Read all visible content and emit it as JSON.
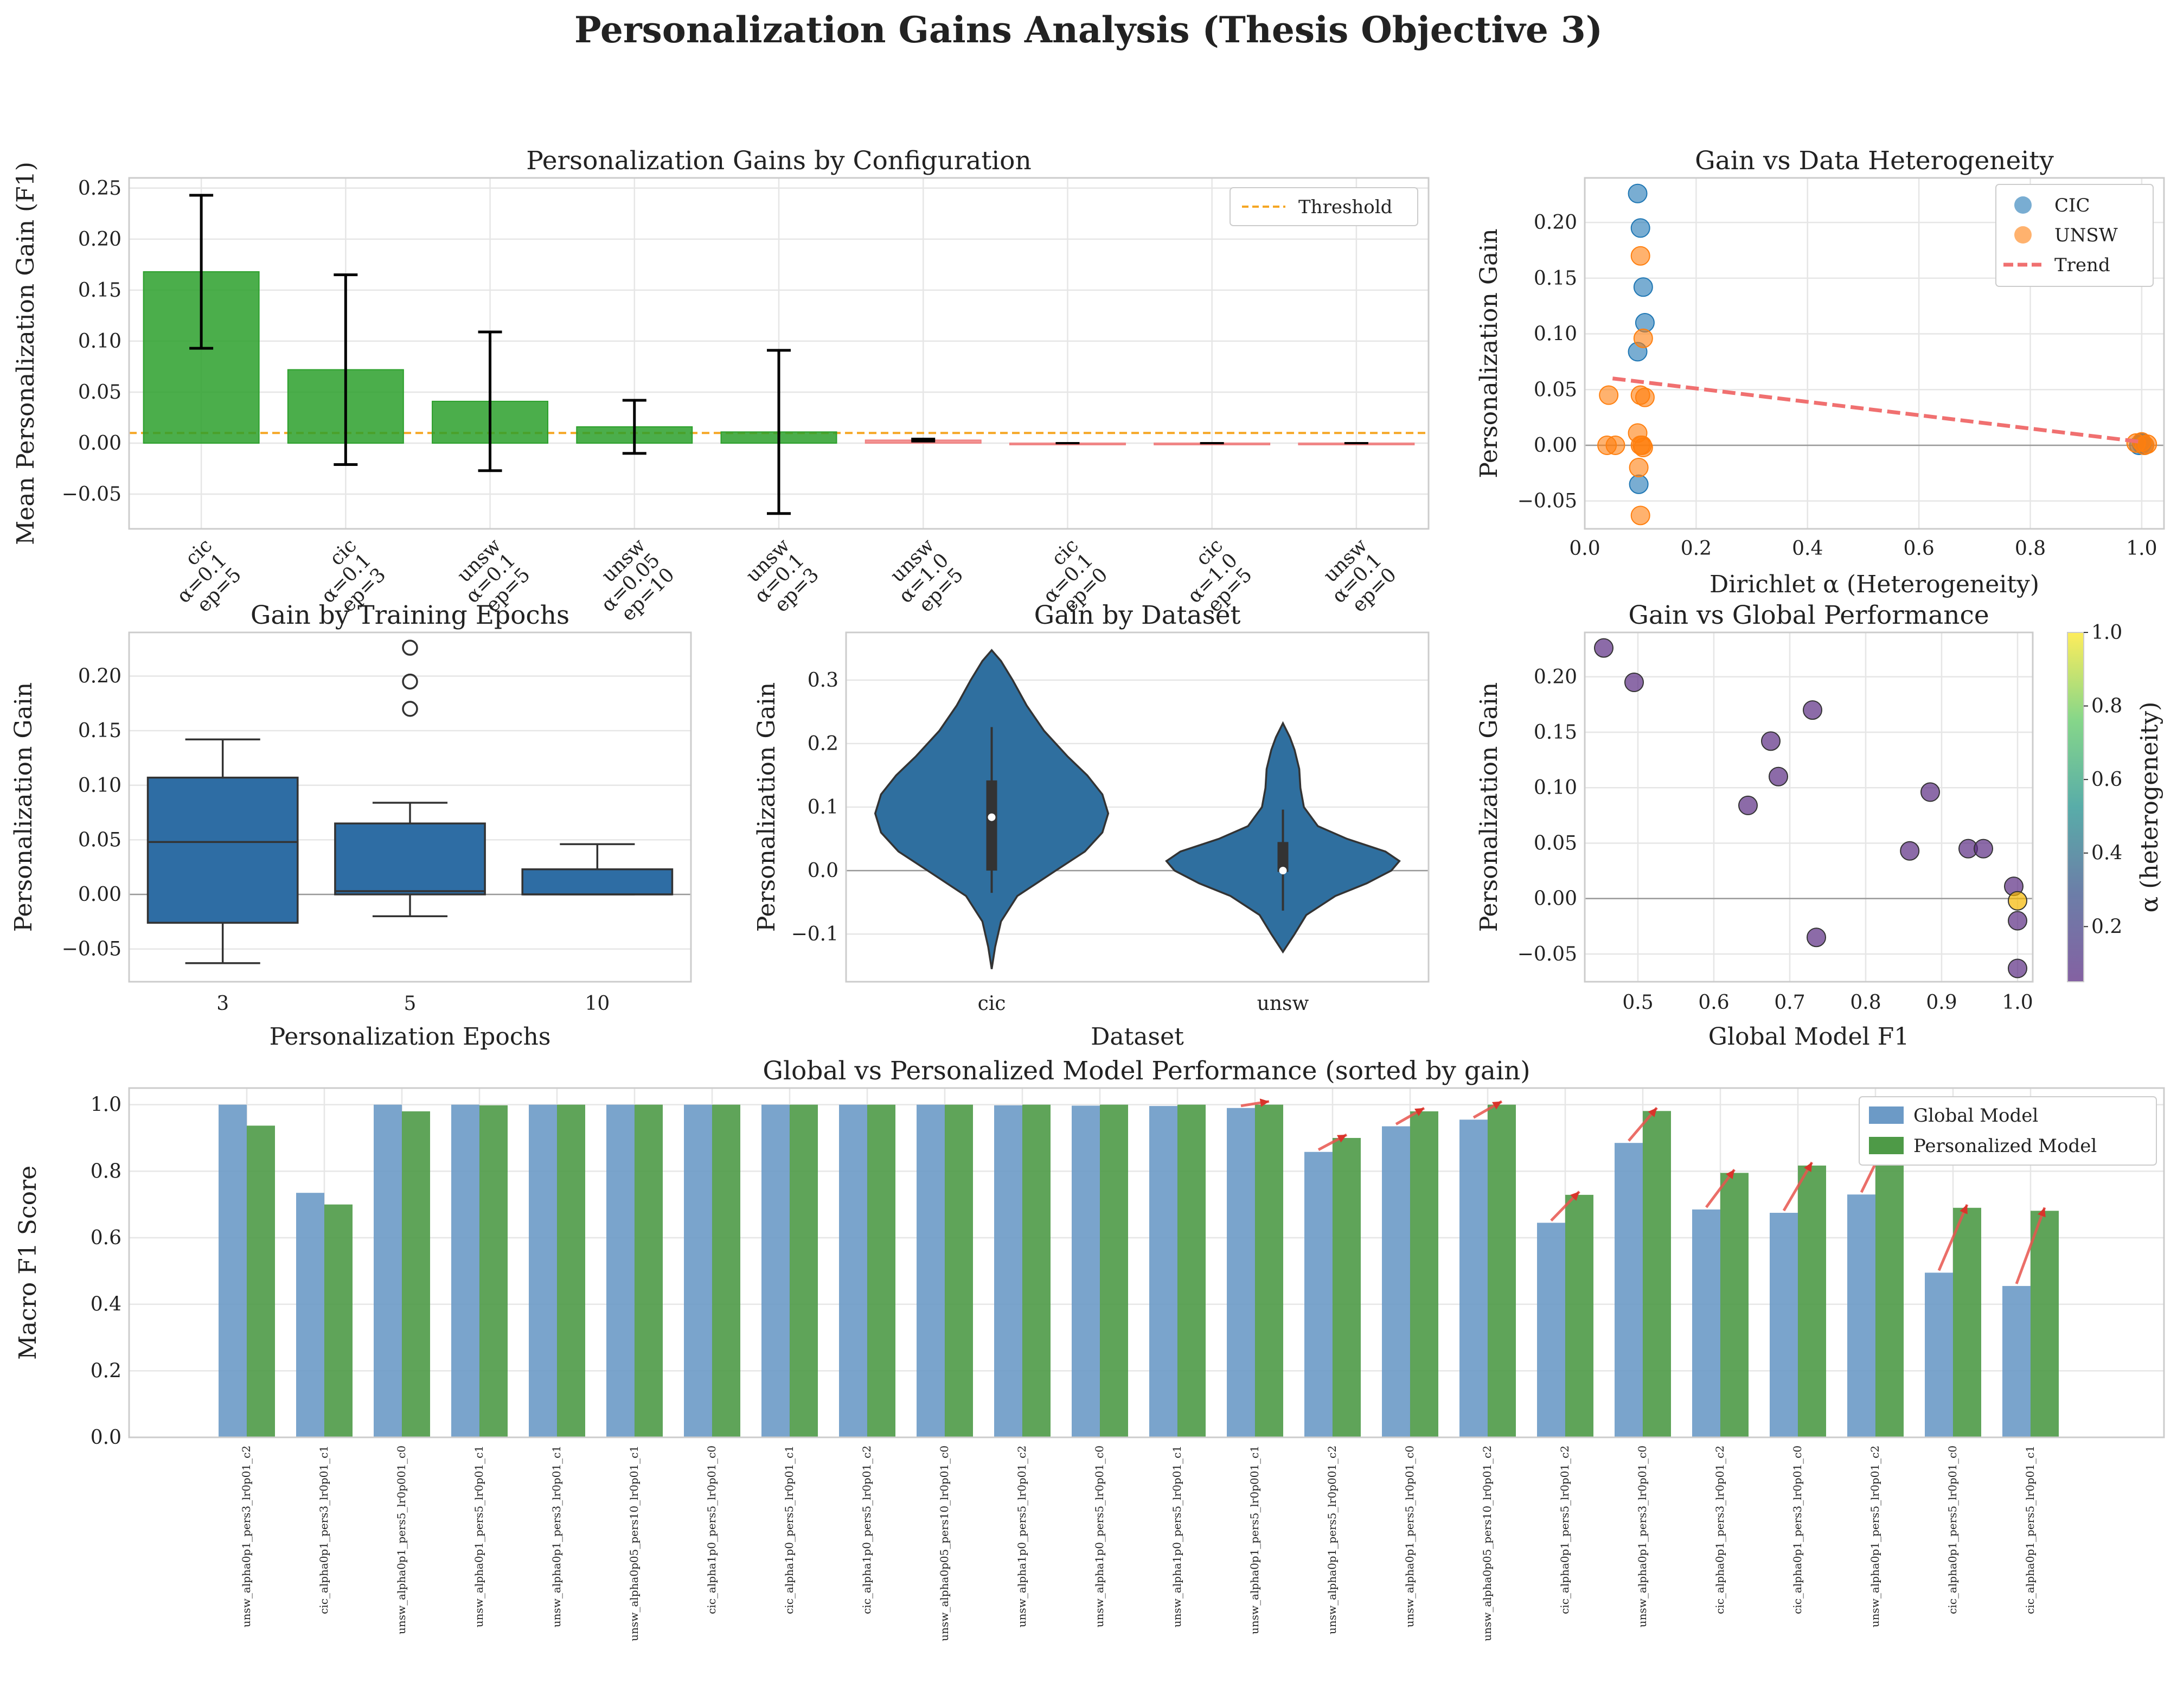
{
  "figure_title": "Personalization Gains Analysis (Thesis Objective 3)",
  "colors": {
    "green": "#2ca02c",
    "red": "#f08080",
    "blue": "#1f77b4",
    "orange": "#ff7f0e",
    "violin": "#2f6f9f",
    "box": "#2e6da4",
    "bar_global": "#6c9ac6",
    "bar_pers": "#4e9a47",
    "grid": "#e6e6e6",
    "threshold": "#f5a623",
    "trend": "#f07070",
    "scatter_purple": "#5b2c83"
  },
  "chart_data": [
    {
      "id": "config_bar",
      "type": "bar",
      "title": "Personalization Gains by Configuration",
      "xlabel": "",
      "ylabel": "Mean Personalization Gain (F1)",
      "ylim": [
        -0.084,
        0.26
      ],
      "yticks": [
        -0.05,
        0.0,
        0.05,
        0.1,
        0.15,
        0.2,
        0.25
      ],
      "ytick_labels": [
        "−0.05",
        "0.00",
        "0.05",
        "0.10",
        "0.15",
        "0.20",
        "0.25"
      ],
      "threshold": 0.01,
      "legend": [
        "Threshold"
      ],
      "categories": [
        [
          "cic",
          "α=0.1",
          "ep=5"
        ],
        [
          "cic",
          "α=0.1",
          "ep=3"
        ],
        [
          "unsw",
          "α=0.1",
          "ep=5"
        ],
        [
          "unsw",
          "α=0.05",
          "ep=10"
        ],
        [
          "unsw",
          "α=0.1",
          "ep=3"
        ],
        [
          "unsw",
          "α=1.0",
          "ep=5"
        ],
        [
          "cic",
          "α=0.1",
          "ep=0"
        ],
        [
          "cic",
          "α=1.0",
          "ep=5"
        ],
        [
          "unsw",
          "α=0.1",
          "ep=0"
        ]
      ],
      "values": [
        0.168,
        0.072,
        0.041,
        0.016,
        0.011,
        0.003,
        0.0,
        0.0,
        0.0
      ],
      "errors": [
        0.075,
        0.093,
        0.068,
        0.026,
        0.08,
        0.001,
        0.0,
        0.0,
        0.0
      ]
    },
    {
      "id": "heterogeneity_scatter",
      "type": "scatter",
      "title": "Gain vs Data Heterogeneity",
      "xlabel": "Dirichlet α (Heterogeneity)",
      "ylabel": "Personalization Gain",
      "xlim": [
        0.0,
        1.04
      ],
      "ylim": [
        -0.075,
        0.24
      ],
      "xticks": [
        0.0,
        0.2,
        0.4,
        0.6,
        0.8,
        1.0
      ],
      "xtick_labels": [
        "0.0",
        "0.2",
        "0.4",
        "0.6",
        "0.8",
        "1.0"
      ],
      "yticks": [
        -0.05,
        0.0,
        0.05,
        0.1,
        0.15,
        0.2
      ],
      "ytick_labels": [
        "−0.05",
        "0.00",
        "0.05",
        "0.10",
        "0.15",
        "0.20"
      ],
      "legend": [
        "CIC",
        "UNSW",
        "Trend"
      ],
      "series": [
        {
          "name": "CIC",
          "x": [
            0.095,
            0.1,
            0.105,
            0.108,
            0.095,
            0.097,
            0.995,
            1.0,
            1.005,
            1.0
          ],
          "y": [
            0.226,
            0.195,
            0.142,
            0.11,
            0.084,
            -0.035,
            0.0,
            0.002,
            0.0,
            0.001
          ]
        },
        {
          "name": "UNSW",
          "x": [
            0.1,
            0.105,
            0.1,
            0.108,
            0.043,
            0.095,
            0.1,
            0.105,
            0.04,
            0.055,
            0.097,
            0.103,
            0.1,
            0.99,
            1.0,
            1.005,
            1.01
          ],
          "y": [
            0.17,
            0.096,
            0.045,
            0.043,
            0.045,
            0.011,
            0.0,
            -0.002,
            0.0,
            0.0,
            -0.02,
            0.0,
            -0.063,
            0.002,
            0.003,
            0.0,
            0.001
          ]
        }
      ],
      "trend": {
        "x": [
          0.05,
          1.0
        ],
        "y": [
          0.06,
          0.003
        ]
      }
    },
    {
      "id": "epochs_box",
      "type": "box",
      "title": "Gain by Training Epochs",
      "xlabel": "Personalization Epochs",
      "ylabel": "Personalization Gain",
      "ylim": [
        -0.08,
        0.24
      ],
      "yticks": [
        -0.05,
        0.0,
        0.05,
        0.1,
        0.15,
        0.2
      ],
      "ytick_labels": [
        "−0.05",
        "0.00",
        "0.05",
        "0.10",
        "0.15",
        "0.20"
      ],
      "categories": [
        "3",
        "5",
        "10"
      ],
      "boxes": [
        {
          "whislo": -0.063,
          "q1": -0.026,
          "med": 0.048,
          "q3": 0.107,
          "whishi": 0.142,
          "fliers": []
        },
        {
          "whislo": -0.02,
          "q1": 0.0,
          "med": 0.003,
          "q3": 0.065,
          "whishi": 0.084,
          "fliers": [
            0.17,
            0.195,
            0.226
          ]
        },
        {
          "whislo": 0.0,
          "q1": 0.0,
          "med": 0.0,
          "q3": 0.023,
          "whishi": 0.046,
          "fliers": []
        }
      ]
    },
    {
      "id": "dataset_violin",
      "type": "violin",
      "title": "Gain by Dataset",
      "xlabel": "Dataset",
      "ylabel": "Personalization Gain",
      "ylim": [
        -0.175,
        0.375
      ],
      "yticks": [
        -0.1,
        0.0,
        0.1,
        0.2,
        0.3
      ],
      "ytick_labels": [
        "−0.1",
        "0.0",
        "0.1",
        "0.2",
        "0.3"
      ],
      "categories": [
        "cic",
        "unsw"
      ],
      "violins": [
        {
          "min": -0.035,
          "q1": 0.0,
          "med": 0.084,
          "q3": 0.142,
          "max": 0.226,
          "profile": [
            [
              -0.155,
              0.0
            ],
            [
              -0.12,
              0.03
            ],
            [
              -0.08,
              0.08
            ],
            [
              -0.04,
              0.22
            ],
            [
              0.0,
              0.55
            ],
            [
              0.03,
              0.8
            ],
            [
              0.06,
              0.95
            ],
            [
              0.09,
              1.0
            ],
            [
              0.12,
              0.95
            ],
            [
              0.15,
              0.82
            ],
            [
              0.18,
              0.65
            ],
            [
              0.22,
              0.45
            ],
            [
              0.26,
              0.3
            ],
            [
              0.3,
              0.18
            ],
            [
              0.33,
              0.08
            ],
            [
              0.347,
              0.0
            ]
          ]
        },
        {
          "min": -0.063,
          "q1": -0.002,
          "med": 0.0,
          "q3": 0.045,
          "max": 0.096,
          "profile": [
            [
              -0.128,
              0.0
            ],
            [
              -0.1,
              0.1
            ],
            [
              -0.07,
              0.2
            ],
            [
              -0.04,
              0.45
            ],
            [
              -0.02,
              0.72
            ],
            [
              0.0,
              0.93
            ],
            [
              0.015,
              1.0
            ],
            [
              0.03,
              0.88
            ],
            [
              0.05,
              0.55
            ],
            [
              0.07,
              0.3
            ],
            [
              0.1,
              0.18
            ],
            [
              0.13,
              0.15
            ],
            [
              0.16,
              0.14
            ],
            [
              0.19,
              0.1
            ],
            [
              0.21,
              0.06
            ],
            [
              0.232,
              0.0
            ]
          ]
        }
      ]
    },
    {
      "id": "global_perf_scatter",
      "type": "scatter",
      "title": "Gain vs Global Performance",
      "xlabel": "Global Model F1",
      "ylabel": "Personalization Gain",
      "colorbar_label": "α (heterogeneity)",
      "colorbar_ticks": [
        "0.2",
        "0.4",
        "0.6",
        "0.8",
        "1.0"
      ],
      "colorbar_values": [
        0.2,
        0.4,
        0.6,
        0.8,
        1.0
      ],
      "colorbar_range": [
        0.05,
        1.0
      ],
      "xlim": [
        0.43,
        1.02
      ],
      "ylim": [
        -0.075,
        0.24
      ],
      "xticks": [
        0.5,
        0.6,
        0.7,
        0.8,
        0.9,
        1.0
      ],
      "xtick_labels": [
        "0.5",
        "0.6",
        "0.7",
        "0.8",
        "0.9",
        "1.0"
      ],
      "yticks": [
        -0.05,
        0.0,
        0.05,
        0.1,
        0.15,
        0.2
      ],
      "ytick_labels": [
        "−0.05",
        "0.00",
        "0.05",
        "0.10",
        "0.15",
        "0.20"
      ],
      "x": [
        0.455,
        0.495,
        0.675,
        0.73,
        0.685,
        0.645,
        0.885,
        0.858,
        0.935,
        0.955,
        0.995,
        1.0,
        1.0,
        1.0,
        0.735
      ],
      "y": [
        0.226,
        0.195,
        0.142,
        0.17,
        0.11,
        0.084,
        0.096,
        0.043,
        0.045,
        0.045,
        0.011,
        -0.002,
        -0.02,
        -0.063,
        -0.035
      ],
      "alpha": [
        0.1,
        0.1,
        0.1,
        0.1,
        0.1,
        0.1,
        0.1,
        0.1,
        0.1,
        0.05,
        0.1,
        1.0,
        0.1,
        0.1,
        0.1
      ]
    },
    {
      "id": "global_vs_personalized",
      "type": "bar",
      "title": "Global vs Personalized Model Performance (sorted by gain)",
      "xlabel": "",
      "ylabel": "Macro F1 Score",
      "ylim": [
        0.0,
        1.05
      ],
      "yticks": [
        0.0,
        0.2,
        0.4,
        0.6,
        0.8,
        1.0
      ],
      "ytick_labels": [
        "0.0",
        "0.2",
        "0.4",
        "0.6",
        "0.8",
        "1.0"
      ],
      "legend": [
        "Global Model",
        "Personalized Model"
      ],
      "categories": [
        "unsw_alpha0p1_pers3_lr0p01_c2",
        "cic_alpha0p1_pers3_lr0p01_c1",
        "unsw_alpha0p1_pers5_lr0p001_c0",
        "unsw_alpha0p1_pers5_lr0p01_c1",
        "unsw_alpha0p1_pers3_lr0p01_c1",
        "unsw_alpha0p05_pers10_lr0p01_c1",
        "cic_alpha1p0_pers5_lr0p01_c0",
        "cic_alpha1p0_pers5_lr0p01_c1",
        "cic_alpha1p0_pers5_lr0p01_c2",
        "unsw_alpha0p05_pers10_lr0p01_c0",
        "unsw_alpha1p0_pers5_lr0p01_c2",
        "unsw_alpha1p0_pers5_lr0p01_c0",
        "unsw_alpha1p0_pers5_lr0p01_c1",
        "unsw_alpha0p1_pers5_lr0p001_c1",
        "unsw_alpha0p1_pers5_lr0p001_c2",
        "unsw_alpha0p1_pers5_lr0p01_c0",
        "unsw_alpha0p05_pers10_lr0p01_c2",
        "cic_alpha0p1_pers5_lr0p01_c2",
        "unsw_alpha0p1_pers3_lr0p01_c0",
        "cic_alpha0p1_pers3_lr0p01_c2",
        "cic_alpha0p1_pers3_lr0p01_c0",
        "unsw_alpha0p1_pers5_lr0p01_c2",
        "cic_alpha0p1_pers5_lr0p01_c0",
        "cic_alpha0p1_pers5_lr0p01_c1"
      ],
      "series": [
        {
          "name": "Global Model",
          "values": [
            1.0,
            0.735,
            1.0,
            1.0,
            1.0,
            1.0,
            1.0,
            1.0,
            1.0,
            1.0,
            0.998,
            0.997,
            0.996,
            0.99,
            0.858,
            0.935,
            0.955,
            0.645,
            0.885,
            0.685,
            0.675,
            0.73,
            0.495,
            0.455
          ]
        },
        {
          "name": "Personalized Model",
          "values": [
            0.937,
            0.7,
            0.98,
            0.998,
            1.0,
            1.0,
            1.0,
            1.0,
            1.0,
            1.0,
            1.0,
            1.0,
            1.0,
            1.0,
            0.9,
            0.98,
            1.0,
            0.729,
            0.981,
            0.795,
            0.817,
            0.9,
            0.69,
            0.681
          ]
        }
      ]
    }
  ]
}
